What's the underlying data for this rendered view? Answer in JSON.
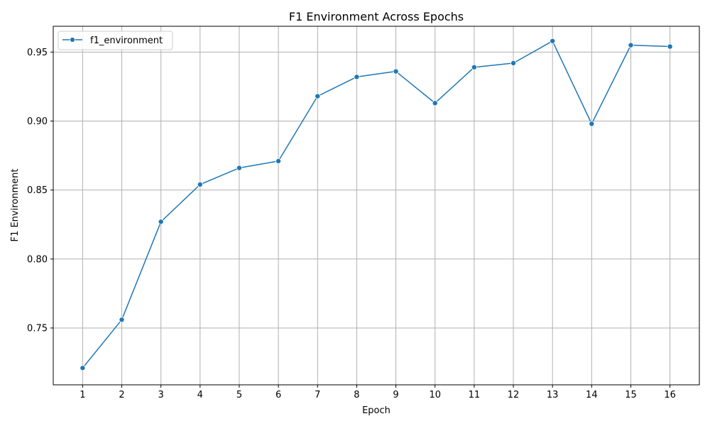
{
  "chart_data": {
    "type": "line",
    "title": "F1 Environment Across Epochs",
    "xlabel": "Epoch",
    "ylabel": "F1 Environment",
    "x": [
      1,
      2,
      3,
      4,
      5,
      6,
      7,
      8,
      9,
      10,
      11,
      12,
      13,
      14,
      15,
      16
    ],
    "xlim": [
      0.25,
      16.75
    ],
    "ylim": [
      0.7088,
      0.9687
    ],
    "yticks": [
      0.75,
      0.8,
      0.85,
      0.9,
      0.95
    ],
    "ytick_labels": [
      "0.75",
      "0.80",
      "0.85",
      "0.90",
      "0.95"
    ],
    "xtick_labels": [
      "1",
      "2",
      "3",
      "4",
      "5",
      "6",
      "7",
      "8",
      "9",
      "10",
      "11",
      "12",
      "13",
      "14",
      "15",
      "16"
    ],
    "grid": true,
    "legend_position": "top-left",
    "series": [
      {
        "name": "f1_environment",
        "color": "#1f77b4",
        "marker": "circle",
        "values": [
          0.721,
          0.756,
          0.827,
          0.854,
          0.866,
          0.871,
          0.918,
          0.932,
          0.936,
          0.913,
          0.939,
          0.942,
          0.958,
          0.898,
          0.955,
          0.954
        ]
      }
    ]
  }
}
